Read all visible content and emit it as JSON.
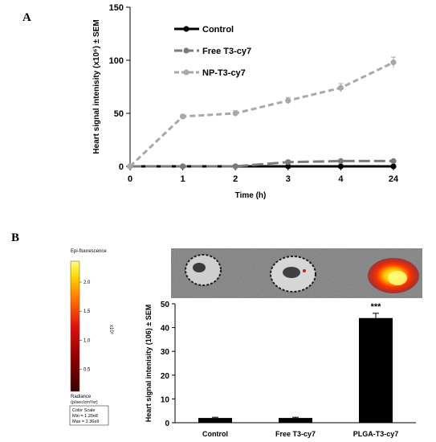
{
  "panel_a_letter": "A",
  "panel_b_letter": "B",
  "chart_data": [
    {
      "type": "line",
      "x": [
        "0",
        "1",
        "2",
        "3",
        "4",
        "24"
      ],
      "xlabel": "Time (h)",
      "ylabel": "Heart signal intenisity (x10⁶) ± SEM",
      "ylim": [
        0,
        150
      ],
      "yticks": [
        0,
        50,
        100,
        150
      ],
      "legend_position": "top-center",
      "series": [
        {
          "name": "Control",
          "color": "#000000",
          "style": "solid",
          "values": [
            0,
            0,
            0,
            0,
            0,
            0
          ],
          "errors": [
            0,
            0,
            0,
            0,
            0,
            0
          ]
        },
        {
          "name": "Free T3-cy7",
          "color": "#7a7a7a",
          "style": "long-dash",
          "values": [
            0,
            0,
            0,
            4,
            5,
            5
          ],
          "errors": [
            0,
            0,
            0,
            1,
            1,
            1
          ]
        },
        {
          "name": "NP-T3-cy7",
          "color": "#a8a8a8",
          "style": "dashed",
          "values": [
            0,
            47,
            50,
            62,
            74,
            98
          ],
          "errors": [
            0,
            2,
            2.5,
            3,
            4,
            5
          ]
        }
      ]
    },
    {
      "type": "bar",
      "categories": [
        "Control",
        "Free T3-cy7",
        "PLGA-T3-cy7"
      ],
      "values": [
        2,
        2,
        44
      ],
      "errors": [
        0.3,
        0.3,
        2
      ],
      "annotations": [
        "",
        "",
        "***"
      ],
      "ylabel": "Heart signal intenisity (106) ± SEM",
      "ylim": [
        0,
        50
      ],
      "yticks": [
        0,
        10,
        20,
        30,
        40,
        50
      ],
      "bar_color": "#000000"
    }
  ],
  "colorbar": {
    "title": "Epi-fluorescence",
    "ticks": [
      "2.0",
      "1.5",
      "1.0",
      "0.5"
    ],
    "tick_values": [
      2.0,
      1.5,
      1.0,
      0.5
    ],
    "range": [
      0.12,
      2.36
    ],
    "exponent": "x10⁹",
    "radiance_label": "Radiance",
    "radiance_unit": "(p/sec/cm²/sr)",
    "scale_box": [
      "Color Scale",
      "Min = 1.20e8",
      "Max = 2.36e9"
    ]
  }
}
